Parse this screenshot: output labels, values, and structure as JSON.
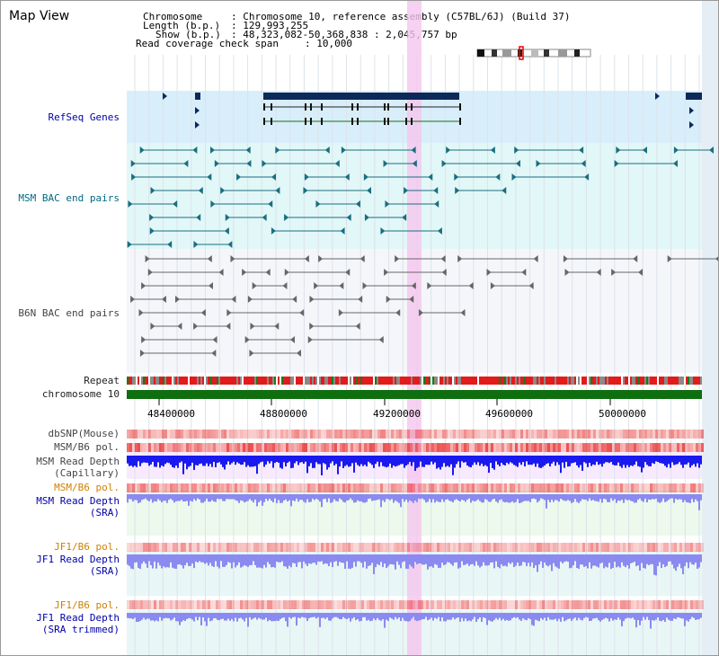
{
  "window": {
    "title": "Map View"
  },
  "info": {
    "chromosome_key": "Chromosome",
    "chromosome_value": ": Chromosome 10, reference assembly (C57BL/6J) (Build 37)",
    "length_key": "Length (b.p.)",
    "length_value": ": 129,993,255",
    "show_key": "Show (b.p.)",
    "show_value": ": 48,323,082-50,368,838 : 2,045,757 bp",
    "coverage_key": "Read coverage check span",
    "coverage_value": ": 10,000"
  },
  "tracks": {
    "refseq": "RefSeq Genes",
    "msm_bac": "MSM BAC end pairs",
    "b6n_bac": "B6N BAC end pairs",
    "repeat": "Repeat",
    "chromosome": "chromosome 10",
    "dbsnp": "dbSNP(Mouse)",
    "msm_b6_pol_1": "MSM/B6 pol.",
    "msm_read_depth_cap_1": "MSM Read Depth",
    "msm_read_depth_cap_2": "(Capillary)",
    "msm_b6_pol_2": "MSM/B6 pol.",
    "msm_read_depth_sra_1": "MSM Read Depth",
    "msm_read_depth_sra_2": "(SRA)",
    "jf1_b6_pol_1": "JF1/B6 pol.",
    "jf1_read_depth_sra_1": "JF1 Read Depth",
    "jf1_read_depth_sra_2": "(SRA)",
    "jf1_b6_pol_2": "JF1/B6 pol.",
    "jf1_read_depth_trim_1": "JF1 Read Depth",
    "jf1_read_depth_trim_2": "(SRA trimmed)"
  },
  "axis": {
    "ticks": [
      "48400000",
      "48800000",
      "49200000",
      "49600000",
      "50000000"
    ]
  },
  "colors": {
    "refseq_bg": "#d8eefa",
    "msm_bg": "#e2f7f7",
    "b6n_bg": "#f4f6fa",
    "highlight": "#f5c6ee",
    "chromosome": "#0f6e0f",
    "gene": "#0b2a5a",
    "msm_feature": "#1a6e80",
    "b6n_feature": "#666666",
    "depth_dark": "#1a1aee",
    "depth_light": "#8a8af0"
  }
}
